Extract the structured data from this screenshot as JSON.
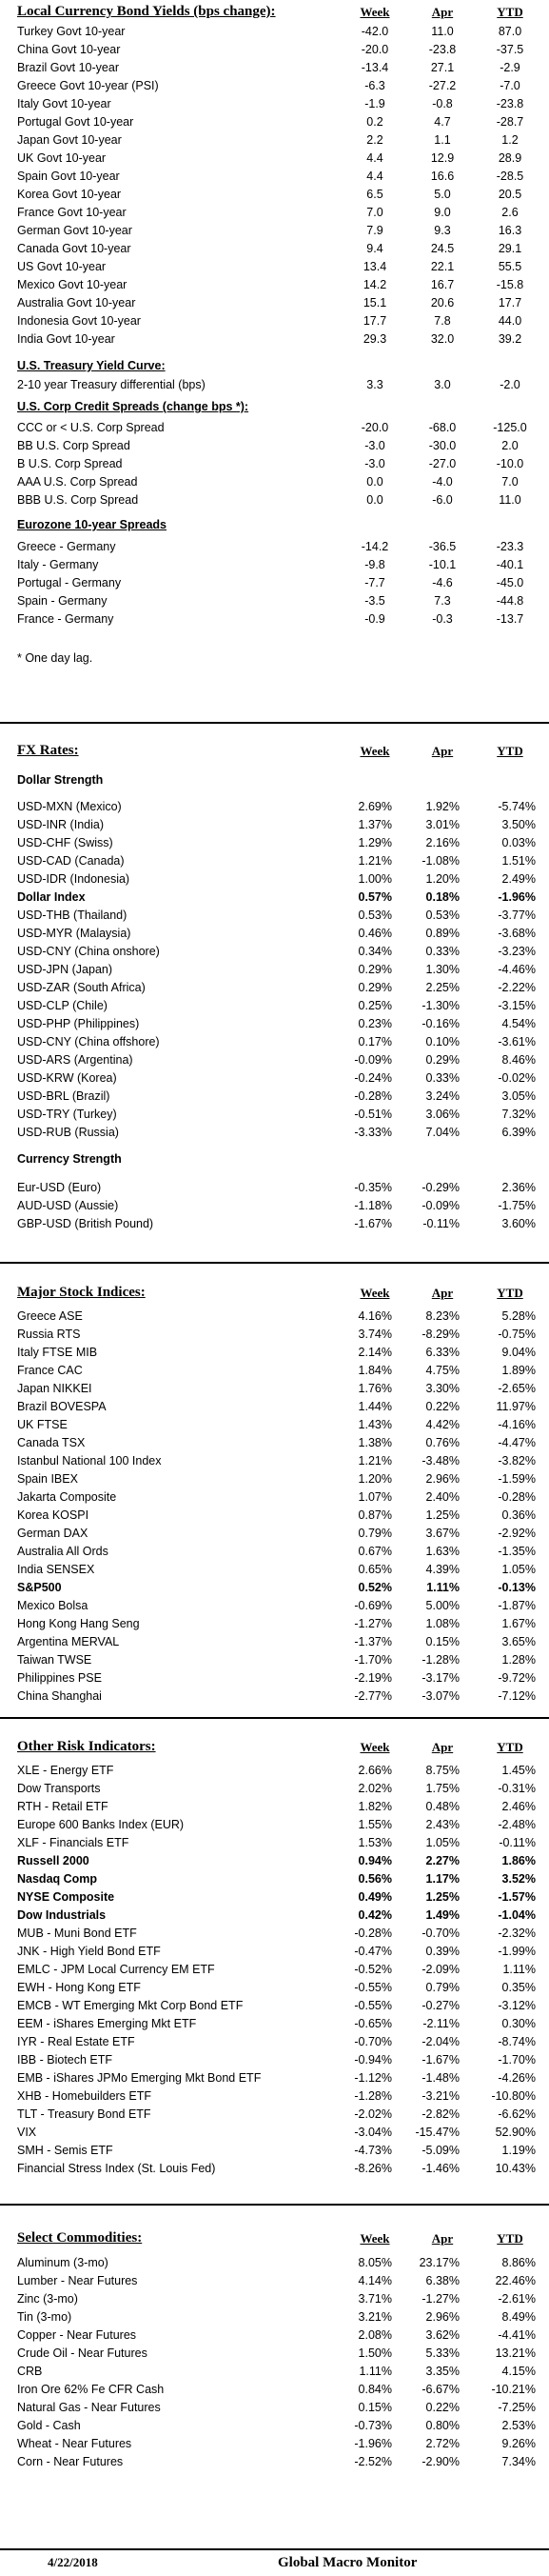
{
  "bonds": {
    "title": "Local Currency Bond Yields (bps change):",
    "col1": "Week",
    "col2": "Apr",
    "col3": "YTD",
    "rows": [
      {
        "label": "Turkey Govt 10-year",
        "week": "-42.0",
        "apr": "11.0",
        "ytd": "87.0"
      },
      {
        "label": "China Govt 10-year",
        "week": "-20.0",
        "apr": "-23.8",
        "ytd": "-37.5"
      },
      {
        "label": "Brazil Govt 10-year",
        "week": "-13.4",
        "apr": "27.1",
        "ytd": "-2.9"
      },
      {
        "label": "Greece Govt 10-year (PSI)",
        "week": "-6.3",
        "apr": "-27.2",
        "ytd": "-7.0"
      },
      {
        "label": "Italy Govt 10-year",
        "week": "-1.9",
        "apr": "-0.8",
        "ytd": "-23.8"
      },
      {
        "label": "Portugal Govt 10-year",
        "week": "0.2",
        "apr": "4.7",
        "ytd": "-28.7"
      },
      {
        "label": "Japan Govt 10-year",
        "week": "2.2",
        "apr": "1.1",
        "ytd": "1.2"
      },
      {
        "label": "UK Govt 10-year",
        "week": "4.4",
        "apr": "12.9",
        "ytd": "28.9"
      },
      {
        "label": "Spain Govt 10-year",
        "week": "4.4",
        "apr": "16.6",
        "ytd": "-28.5"
      },
      {
        "label": "Korea Govt 10-year",
        "week": "6.5",
        "apr": "5.0",
        "ytd": "20.5"
      },
      {
        "label": "France Govt 10-year",
        "week": "7.0",
        "apr": "9.0",
        "ytd": "2.6"
      },
      {
        "label": "German Govt 10-year",
        "week": "7.9",
        "apr": "9.3",
        "ytd": "16.3"
      },
      {
        "label": "Canada Govt 10-year",
        "week": "9.4",
        "apr": "24.5",
        "ytd": "29.1"
      },
      {
        "label": "US Govt 10-year",
        "week": "13.4",
        "apr": "22.1",
        "ytd": "55.5"
      },
      {
        "label": "Mexico Govt 10-year",
        "week": "14.2",
        "apr": "16.7",
        "ytd": "-15.8"
      },
      {
        "label": "Australia Govt 10-year",
        "week": "15.1",
        "apr": "20.6",
        "ytd": "17.7"
      },
      {
        "label": "Indonesia Govt 10-year",
        "week": "17.7",
        "apr": "7.8",
        "ytd": "44.0"
      },
      {
        "label": "India Govt 10-year",
        "week": "29.3",
        "apr": "32.0",
        "ytd": "39.2"
      }
    ]
  },
  "treasury": {
    "title": "U.S. Treasury Yield Curve:",
    "rows": [
      {
        "label": "2-10 year Treasury differential (bps)",
        "week": "3.3",
        "apr": "3.0",
        "ytd": "-2.0"
      }
    ]
  },
  "credit": {
    "title": "U.S. Corp Credit Spreads (change bps *):",
    "rows": [
      {
        "label": "CCC or < U.S. Corp Spread",
        "week": "-20.0",
        "apr": "-68.0",
        "ytd": "-125.0"
      },
      {
        "label": "BB U.S. Corp Spread",
        "week": "-3.0",
        "apr": "-30.0",
        "ytd": "2.0"
      },
      {
        "label": "B U.S. Corp Spread",
        "week": "-3.0",
        "apr": "-27.0",
        "ytd": "-10.0"
      },
      {
        "label": "AAA U.S. Corp Spread",
        "week": "0.0",
        "apr": "-4.0",
        "ytd": "7.0"
      },
      {
        "label": "BBB U.S. Corp Spread",
        "week": "0.0",
        "apr": "-6.0",
        "ytd": "11.0"
      }
    ]
  },
  "eurozone": {
    "title": "Eurozone 10-year Spreads",
    "rows": [
      {
        "label": "Greece - Germany",
        "week": "-14.2",
        "apr": "-36.5",
        "ytd": "-23.3"
      },
      {
        "label": "Italy - Germany",
        "week": "-9.8",
        "apr": "-10.1",
        "ytd": "-40.1"
      },
      {
        "label": "Portugal - Germany",
        "week": "-7.7",
        "apr": "-4.6",
        "ytd": "-45.0"
      },
      {
        "label": "Spain - Germany",
        "week": "-3.5",
        "apr": "7.3",
        "ytd": "-44.8"
      },
      {
        "label": "France - Germany",
        "week": "-0.9",
        "apr": "-0.3",
        "ytd": "-13.7"
      }
    ],
    "note": "* One day lag."
  },
  "fx": {
    "title": "FX Rates:",
    "col1": "Week",
    "col2": "Apr",
    "col3": "YTD",
    "strength_title": "Dollar Strength",
    "rows": [
      {
        "label": "USD-MXN  (Mexico)",
        "week": "2.69%",
        "apr": "1.92%",
        "ytd": "-5.74%"
      },
      {
        "label": "USD-INR (India)",
        "week": "1.37%",
        "apr": "3.01%",
        "ytd": "3.50%"
      },
      {
        "label": "USD-CHF (Swiss)",
        "week": "1.29%",
        "apr": "2.16%",
        "ytd": "0.03%"
      },
      {
        "label": "USD-CAD (Canada)",
        "week": "1.21%",
        "apr": "-1.08%",
        "ytd": "1.51%"
      },
      {
        "label": "USD-IDR (Indonesia)",
        "week": "1.00%",
        "apr": "1.20%",
        "ytd": "2.49%"
      },
      {
        "label": "Dollar Index",
        "week": "0.57%",
        "apr": "0.18%",
        "ytd": "-1.96%",
        "bold": true
      },
      {
        "label": "USD-THB (Thailand)",
        "week": "0.53%",
        "apr": "0.53%",
        "ytd": "-3.77%"
      },
      {
        "label": "USD-MYR (Malaysia)",
        "week": "0.46%",
        "apr": "0.89%",
        "ytd": "-3.68%"
      },
      {
        "label": "USD-CNY (China onshore)",
        "week": "0.34%",
        "apr": "0.33%",
        "ytd": "-3.23%"
      },
      {
        "label": "USD-JPN (Japan)",
        "week": "0.29%",
        "apr": "1.30%",
        "ytd": "-4.46%"
      },
      {
        "label": "USD-ZAR (South Africa)",
        "week": "0.29%",
        "apr": "2.25%",
        "ytd": "-2.22%"
      },
      {
        "label": "USD-CLP (Chile)",
        "week": "0.25%",
        "apr": "-1.30%",
        "ytd": "-3.15%"
      },
      {
        "label": "USD-PHP (Philippines)",
        "week": "0.23%",
        "apr": "-0.16%",
        "ytd": "4.54%"
      },
      {
        "label": "USD-CNY (China offshore)",
        "week": "0.17%",
        "apr": "0.10%",
        "ytd": "-3.61%"
      },
      {
        "label": "USD-ARS (Argentina)",
        "week": "-0.09%",
        "apr": "0.29%",
        "ytd": "8.46%"
      },
      {
        "label": "USD-KRW (Korea)",
        "week": "-0.24%",
        "apr": "0.33%",
        "ytd": "-0.02%"
      },
      {
        "label": "USD-BRL (Brazil)",
        "week": "-0.28%",
        "apr": "3.24%",
        "ytd": "3.05%"
      },
      {
        "label": "USD-TRY (Turkey)",
        "week": "-0.51%",
        "apr": "3.06%",
        "ytd": "7.32%"
      },
      {
        "label": "USD-RUB (Russia)",
        "week": "-3.33%",
        "apr": "7.04%",
        "ytd": "6.39%"
      }
    ],
    "ccy_title": "Currency Strength",
    "ccy_rows": [
      {
        "label": "Eur-USD (Euro)",
        "week": "-0.35%",
        "apr": "-0.29%",
        "ytd": "2.36%"
      },
      {
        "label": "AUD-USD (Aussie)",
        "week": "-1.18%",
        "apr": "-0.09%",
        "ytd": "-1.75%"
      },
      {
        "label": "GBP-USD (British Pound)",
        "week": "-1.67%",
        "apr": "-0.11%",
        "ytd": "3.60%"
      }
    ]
  },
  "stocks": {
    "title": "Major Stock Indices:",
    "col1": "Week",
    "col2": "Apr",
    "col3": "YTD",
    "rows": [
      {
        "label": "Greece ASE",
        "week": "4.16%",
        "apr": "8.23%",
        "ytd": "5.28%"
      },
      {
        "label": "Russia RTS",
        "week": "3.74%",
        "apr": "-8.29%",
        "ytd": "-0.75%"
      },
      {
        "label": "Italy FTSE MIB",
        "week": "2.14%",
        "apr": "6.33%",
        "ytd": "9.04%"
      },
      {
        "label": "France CAC",
        "week": "1.84%",
        "apr": "4.75%",
        "ytd": "1.89%"
      },
      {
        "label": "Japan NIKKEI",
        "week": "1.76%",
        "apr": "3.30%",
        "ytd": "-2.65%"
      },
      {
        "label": "Brazil BOVESPA",
        "week": "1.44%",
        "apr": "0.22%",
        "ytd": "11.97%"
      },
      {
        "label": "UK FTSE",
        "week": "1.43%",
        "apr": "4.42%",
        "ytd": "-4.16%"
      },
      {
        "label": "Canada TSX",
        "week": "1.38%",
        "apr": "0.76%",
        "ytd": "-4.47%"
      },
      {
        "label": "Istanbul National 100 Index",
        "week": "1.21%",
        "apr": "-3.48%",
        "ytd": "-3.82%"
      },
      {
        "label": "Spain IBEX",
        "week": "1.20%",
        "apr": "2.96%",
        "ytd": "-1.59%"
      },
      {
        "label": "Jakarta Composite",
        "week": "1.07%",
        "apr": "2.40%",
        "ytd": "-0.28%"
      },
      {
        "label": "Korea KOSPI",
        "week": "0.87%",
        "apr": "1.25%",
        "ytd": "0.36%"
      },
      {
        "label": "German DAX",
        "week": "0.79%",
        "apr": "3.67%",
        "ytd": "-2.92%"
      },
      {
        "label": "Australia All Ords",
        "week": "0.67%",
        "apr": "1.63%",
        "ytd": "-1.35%"
      },
      {
        "label": "India SENSEX",
        "week": "0.65%",
        "apr": "4.39%",
        "ytd": "1.05%"
      },
      {
        "label": "S&P500",
        "week": "0.52%",
        "apr": "1.11%",
        "ytd": "-0.13%",
        "bold": true
      },
      {
        "label": "Mexico Bolsa",
        "week": "-0.69%",
        "apr": "5.00%",
        "ytd": "-1.87%"
      },
      {
        "label": "Hong Kong Hang Seng",
        "week": "-1.27%",
        "apr": "1.08%",
        "ytd": "1.67%"
      },
      {
        "label": "Argentina MERVAL",
        "week": "-1.37%",
        "apr": "0.15%",
        "ytd": "3.65%"
      },
      {
        "label": "Taiwan  TWSE",
        "week": "-1.70%",
        "apr": "-1.28%",
        "ytd": "1.28%"
      },
      {
        "label": "Philippines PSE",
        "week": "-2.19%",
        "apr": "-3.17%",
        "ytd": "-9.72%"
      },
      {
        "label": "China Shanghai",
        "week": "-2.77%",
        "apr": "-3.07%",
        "ytd": "-7.12%"
      }
    ]
  },
  "risk": {
    "title": "Other Risk Indicators:",
    "col1": "Week",
    "col2": "Apr",
    "col3": "YTD",
    "rows": [
      {
        "label": "XLE - Energy ETF",
        "week": "2.66%",
        "apr": "8.75%",
        "ytd": "1.45%"
      },
      {
        "label": "Dow Transports",
        "week": "2.02%",
        "apr": "1.75%",
        "ytd": "-0.31%"
      },
      {
        "label": "RTH - Retail ETF",
        "week": "1.82%",
        "apr": "0.48%",
        "ytd": "2.46%"
      },
      {
        "label": "Europe 600 Banks Index (EUR)",
        "week": "1.55%",
        "apr": "2.43%",
        "ytd": "-2.48%"
      },
      {
        "label": "XLF - Financials ETF",
        "week": "1.53%",
        "apr": "1.05%",
        "ytd": "-0.11%"
      },
      {
        "label": "Russell 2000",
        "week": "0.94%",
        "apr": "2.27%",
        "ytd": "1.86%",
        "bold": true
      },
      {
        "label": "Nasdaq Comp",
        "week": "0.56%",
        "apr": "1.17%",
        "ytd": "3.52%",
        "bold": true
      },
      {
        "label": "NYSE Composite",
        "week": "0.49%",
        "apr": "1.25%",
        "ytd": "-1.57%",
        "bold": true
      },
      {
        "label": "Dow Industrials",
        "week": "0.42%",
        "apr": "1.49%",
        "ytd": "-1.04%",
        "bold": true
      },
      {
        "label": "MUB - Muni Bond ETF",
        "week": "-0.28%",
        "apr": "-0.70%",
        "ytd": "-2.32%"
      },
      {
        "label": "JNK - High Yield Bond ETF",
        "week": "-0.47%",
        "apr": "0.39%",
        "ytd": "-1.99%"
      },
      {
        "label": "EMLC - JPM Local Currency EM ETF",
        "week": "-0.52%",
        "apr": "-2.09%",
        "ytd": "1.11%"
      },
      {
        "label": "EWH - Hong Kong ETF",
        "week": "-0.55%",
        "apr": "0.79%",
        "ytd": "0.35%"
      },
      {
        "label": "EMCB - WT Emerging Mkt Corp Bond ETF",
        "week": "-0.55%",
        "apr": "-0.27%",
        "ytd": "-3.12%"
      },
      {
        "label": "EEM - iShares Emerging Mkt ETF",
        "week": "-0.65%",
        "apr": "-2.11%",
        "ytd": "0.30%"
      },
      {
        "label": "IYR - Real Estate ETF",
        "week": "-0.70%",
        "apr": "-2.04%",
        "ytd": "-8.74%"
      },
      {
        "label": "IBB - Biotech ETF",
        "week": "-0.94%",
        "apr": "-1.67%",
        "ytd": "-1.70%"
      },
      {
        "label": "EMB - iShares JPMo Emerging Mkt Bond ETF",
        "week": "-1.12%",
        "apr": "-1.48%",
        "ytd": "-4.26%"
      },
      {
        "label": "XHB - Homebuilders ETF",
        "week": "-1.28%",
        "apr": "-3.21%",
        "ytd": "-10.80%"
      },
      {
        "label": "TLT - Treasury Bond ETF",
        "week": "-2.02%",
        "apr": "-2.82%",
        "ytd": "-6.62%"
      },
      {
        "label": "VIX",
        "week": "-3.04%",
        "apr": "-15.47%",
        "ytd": "52.90%"
      },
      {
        "label": "SMH - Semis ETF",
        "week": "-4.73%",
        "apr": "-5.09%",
        "ytd": "1.19%"
      },
      {
        "label": "Financial Stress Index (St. Louis Fed)",
        "week": "-8.26%",
        "apr": "-1.46%",
        "ytd": "10.43%"
      }
    ]
  },
  "commodities": {
    "title": "Select Commodities:",
    "col1": "Week",
    "col2": "Apr",
    "col3": "YTD",
    "rows": [
      {
        "label": "Aluminum (3-mo)",
        "week": "8.05%",
        "apr": "23.17%",
        "ytd": "8.86%"
      },
      {
        "label": "Lumber - Near Futures",
        "week": "4.14%",
        "apr": "6.38%",
        "ytd": "22.46%"
      },
      {
        "label": "Zinc (3-mo)",
        "week": "3.71%",
        "apr": "-1.27%",
        "ytd": "-2.61%"
      },
      {
        "label": "Tin (3-mo)",
        "week": "3.21%",
        "apr": "2.96%",
        "ytd": "8.49%"
      },
      {
        "label": "Copper - Near Futures",
        "week": "2.08%",
        "apr": "3.62%",
        "ytd": "-4.41%"
      },
      {
        "label": "Crude Oil - Near Futures",
        "week": "1.50%",
        "apr": "5.33%",
        "ytd": "13.21%"
      },
      {
        "label": "CRB",
        "week": "1.11%",
        "apr": "3.35%",
        "ytd": "4.15%"
      },
      {
        "label": "Iron Ore 62% Fe CFR Cash",
        "week": "0.84%",
        "apr": "-6.67%",
        "ytd": "-10.21%"
      },
      {
        "label": "Natural Gas - Near Futures",
        "week": "0.15%",
        "apr": "0.22%",
        "ytd": "-7.25%"
      },
      {
        "label": "Gold - Cash",
        "week": "-0.73%",
        "apr": "0.80%",
        "ytd": "2.53%"
      },
      {
        "label": "Wheat - Near Futures",
        "week": "-1.96%",
        "apr": "2.72%",
        "ytd": "9.26%"
      },
      {
        "label": "Corn - Near Futures",
        "week": "-2.52%",
        "apr": "-2.90%",
        "ytd": "7.34%"
      }
    ]
  },
  "footer": {
    "date": "4/22/2018",
    "name": "Global Macro Monitor"
  }
}
